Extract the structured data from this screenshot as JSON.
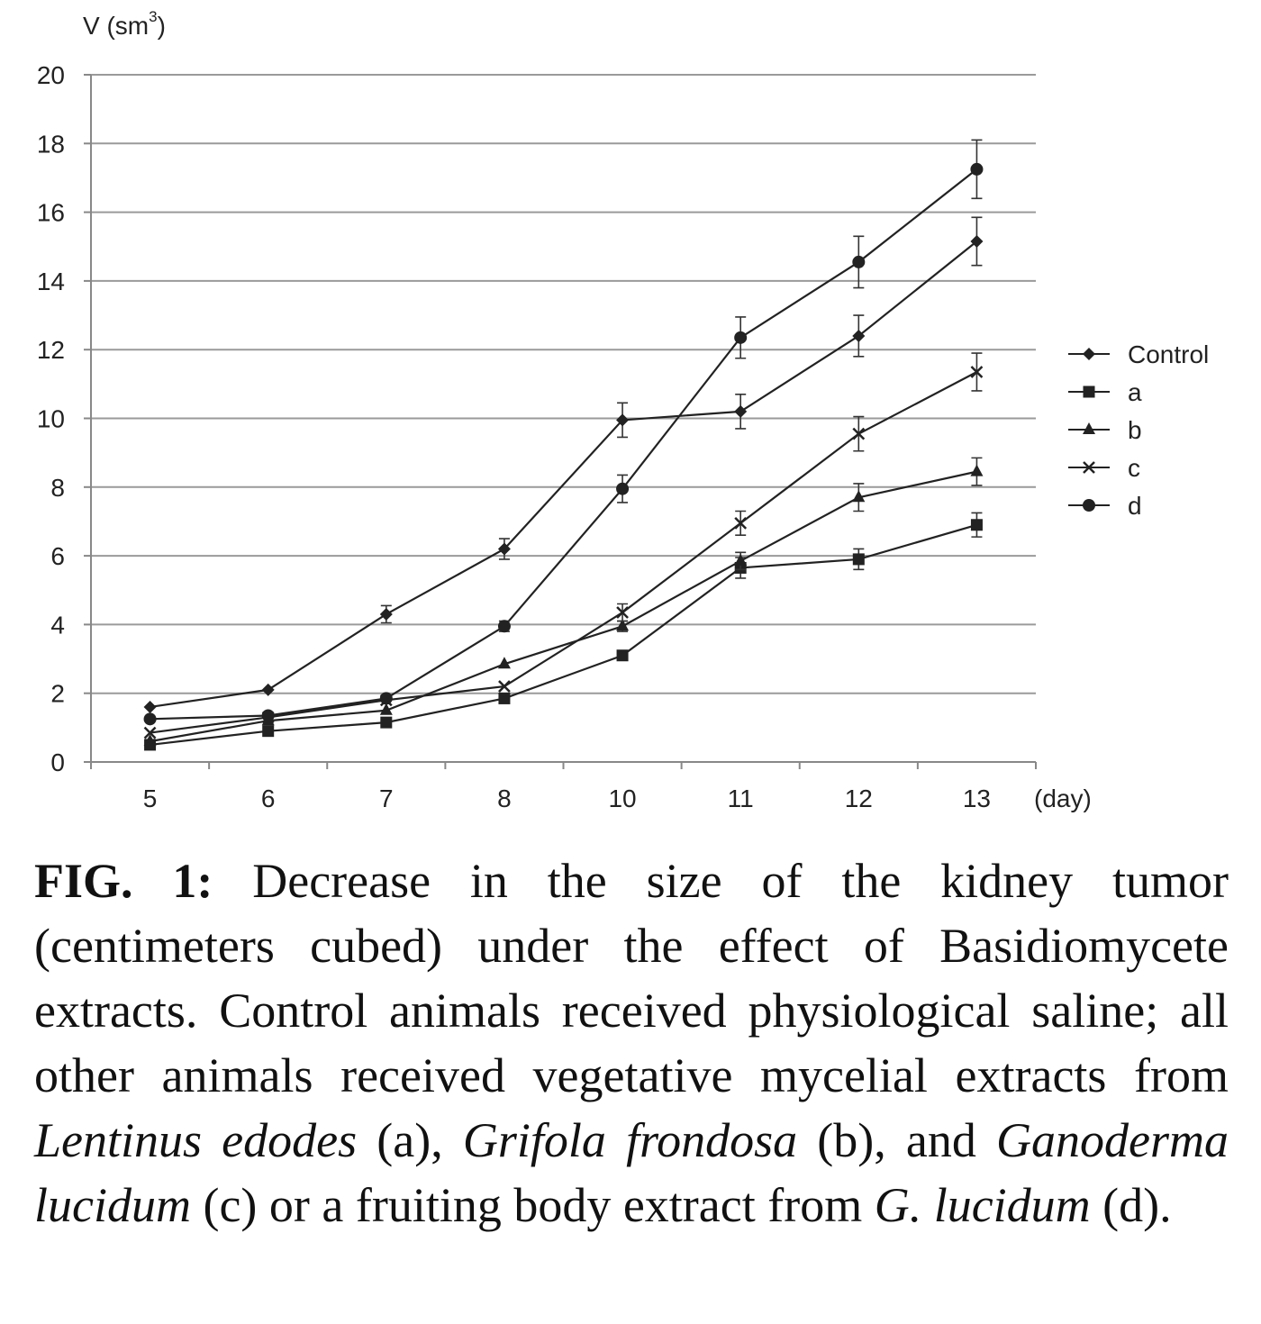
{
  "chart_data": {
    "type": "line",
    "ylabel": "V (sm",
    "ylabel_sup": "3",
    "ylabel_close": ")",
    "xlabel": "(day)",
    "ylim": [
      0,
      20
    ],
    "yticks": [
      0,
      2,
      4,
      6,
      8,
      10,
      12,
      14,
      16,
      18,
      20
    ],
    "grid": true,
    "legend_position": "right",
    "categories": [
      "5",
      "6",
      "7",
      "8",
      "10",
      "11",
      "12",
      "13"
    ],
    "series": [
      {
        "name": "Control",
        "marker": "diamond",
        "values": [
          1.6,
          2.1,
          4.3,
          6.2,
          9.95,
          10.2,
          12.4,
          15.15
        ],
        "errors": [
          0,
          0,
          0.25,
          0.3,
          0.5,
          0.5,
          0.6,
          0.7
        ]
      },
      {
        "name": "a",
        "marker": "square",
        "values": [
          0.5,
          0.9,
          1.15,
          1.85,
          3.1,
          5.65,
          5.9,
          6.9
        ],
        "errors": [
          0,
          0,
          0,
          0,
          0,
          0.3,
          0.3,
          0.35
        ]
      },
      {
        "name": "b",
        "marker": "triangle",
        "values": [
          0.6,
          1.2,
          1.5,
          2.85,
          3.95,
          5.85,
          7.7,
          8.45
        ],
        "errors": [
          0,
          0,
          0,
          0,
          0.15,
          0.25,
          0.4,
          0.4
        ]
      },
      {
        "name": "c",
        "marker": "x",
        "values": [
          0.85,
          1.3,
          1.8,
          2.2,
          4.35,
          6.95,
          9.55,
          11.35
        ],
        "errors": [
          0,
          0,
          0,
          0,
          0.25,
          0.35,
          0.5,
          0.55
        ]
      },
      {
        "name": "d",
        "marker": "circle",
        "values": [
          1.25,
          1.35,
          1.85,
          3.95,
          7.95,
          12.35,
          14.55,
          17.25
        ],
        "errors": [
          0,
          0,
          0,
          0.15,
          0.4,
          0.6,
          0.75,
          0.85
        ]
      }
    ]
  },
  "caption": {
    "fig_label": "FIG. 1:",
    "part1": " Decrease in the size of the kidney tumor (centimeters cubed) under the effect of Basidiomycete extracts. Control animals received physiological saline; all other animals received vegetative mycelial extracts from ",
    "species_a": "Lentinus edodes",
    "part2": " (a), ",
    "species_b": "Grifola frondosa",
    "part3": " (b), and ",
    "species_c": "Ganoderma lucidum",
    "part4": " (c) or a fruiting body extract from ",
    "species_d": "G. lucidum",
    "part5": " (d)."
  }
}
